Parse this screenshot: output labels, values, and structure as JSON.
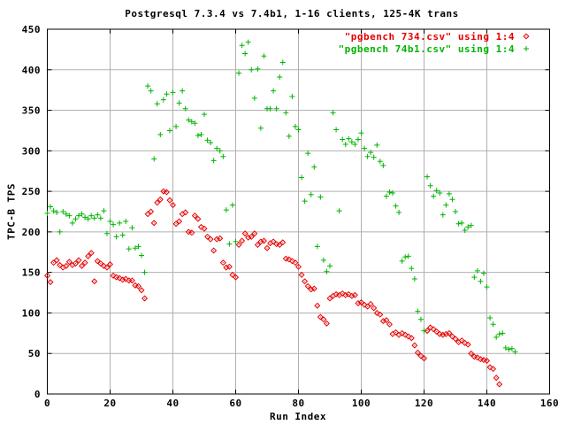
{
  "page_background": "#ffffff",
  "colors": {
    "grid": "#b0b0b0",
    "axis": "#000000",
    "series_734": "#e60000",
    "series_74b1": "#00b400"
  },
  "chart_data": {
    "type": "scatter",
    "title": "Postgresql 7.3.4 vs 7.4b1, 1-16 clients, 125-4K trans",
    "xlabel": "Run Index",
    "ylabel": "TPC-B TPS",
    "xlim": [
      0,
      160
    ],
    "ylim": [
      0,
      450
    ],
    "xticks": [
      0,
      20,
      40,
      60,
      80,
      100,
      120,
      140,
      160
    ],
    "yticks": [
      0,
      50,
      100,
      150,
      200,
      250,
      300,
      350,
      400,
      450
    ],
    "grid": true,
    "legend_position": "top-right-inside",
    "series": [
      {
        "name": "\"pgbench 734.csv\" using 1:4",
        "marker": "diamond",
        "color": "#e60000",
        "points": [
          [
            0,
            146
          ],
          [
            1,
            138
          ],
          [
            2,
            162
          ],
          [
            3,
            165
          ],
          [
            4,
            159
          ],
          [
            5,
            156
          ],
          [
            6,
            158
          ],
          [
            7,
            163
          ],
          [
            8,
            159
          ],
          [
            9,
            161
          ],
          [
            10,
            165
          ],
          [
            11,
            158
          ],
          [
            12,
            162
          ],
          [
            13,
            170
          ],
          [
            14,
            174
          ],
          [
            15,
            139
          ],
          [
            16,
            164
          ],
          [
            17,
            161
          ],
          [
            18,
            158
          ],
          [
            19,
            156
          ],
          [
            20,
            160
          ],
          [
            21,
            146
          ],
          [
            22,
            144
          ],
          [
            23,
            143
          ],
          [
            24,
            141
          ],
          [
            25,
            142
          ],
          [
            26,
            140
          ],
          [
            27,
            140
          ],
          [
            28,
            134
          ],
          [
            29,
            133
          ],
          [
            30,
            128
          ],
          [
            31,
            118
          ],
          [
            32,
            222
          ],
          [
            33,
            225
          ],
          [
            34,
            211
          ],
          [
            35,
            236
          ],
          [
            36,
            240
          ],
          [
            37,
            250
          ],
          [
            38,
            249
          ],
          [
            39,
            239
          ],
          [
            40,
            233
          ],
          [
            41,
            210
          ],
          [
            42,
            213
          ],
          [
            43,
            222
          ],
          [
            44,
            224
          ],
          [
            45,
            200
          ],
          [
            46,
            199
          ],
          [
            47,
            220
          ],
          [
            48,
            216
          ],
          [
            49,
            206
          ],
          [
            50,
            204
          ],
          [
            51,
            194
          ],
          [
            52,
            191
          ],
          [
            53,
            177
          ],
          [
            54,
            191
          ],
          [
            55,
            192
          ],
          [
            56,
            162
          ],
          [
            57,
            156
          ],
          [
            58,
            157
          ],
          [
            59,
            147
          ],
          [
            60,
            144
          ],
          [
            61,
            184
          ],
          [
            62,
            189
          ],
          [
            63,
            198
          ],
          [
            64,
            193
          ],
          [
            65,
            194
          ],
          [
            66,
            198
          ],
          [
            67,
            184
          ],
          [
            68,
            188
          ],
          [
            69,
            189
          ],
          [
            70,
            180
          ],
          [
            71,
            186
          ],
          [
            72,
            188
          ],
          [
            73,
            185
          ],
          [
            74,
            184
          ],
          [
            75,
            187
          ],
          [
            76,
            167
          ],
          [
            77,
            166
          ],
          [
            78,
            164
          ],
          [
            79,
            162
          ],
          [
            80,
            157
          ],
          [
            81,
            147
          ],
          [
            82,
            139
          ],
          [
            83,
            133
          ],
          [
            84,
            129
          ],
          [
            85,
            130
          ],
          [
            86,
            109
          ],
          [
            87,
            95
          ],
          [
            88,
            92
          ],
          [
            89,
            87
          ],
          [
            90,
            118
          ],
          [
            91,
            121
          ],
          [
            92,
            123
          ],
          [
            93,
            122
          ],
          [
            94,
            124
          ],
          [
            95,
            122
          ],
          [
            96,
            123
          ],
          [
            97,
            121
          ],
          [
            98,
            122
          ],
          [
            99,
            112
          ],
          [
            100,
            113
          ],
          [
            101,
            110
          ],
          [
            102,
            108
          ],
          [
            103,
            111
          ],
          [
            104,
            106
          ],
          [
            105,
            100
          ],
          [
            106,
            98
          ],
          [
            107,
            90
          ],
          [
            108,
            91
          ],
          [
            109,
            86
          ],
          [
            110,
            74
          ],
          [
            111,
            76
          ],
          [
            112,
            73
          ],
          [
            113,
            75
          ],
          [
            114,
            73
          ],
          [
            115,
            71
          ],
          [
            116,
            69
          ],
          [
            117,
            60
          ],
          [
            118,
            51
          ],
          [
            119,
            47
          ],
          [
            120,
            44
          ],
          [
            121,
            78
          ],
          [
            122,
            82
          ],
          [
            123,
            80
          ],
          [
            124,
            77
          ],
          [
            125,
            74
          ],
          [
            126,
            73
          ],
          [
            127,
            74
          ],
          [
            128,
            75
          ],
          [
            129,
            71
          ],
          [
            130,
            68
          ],
          [
            131,
            64
          ],
          [
            132,
            66
          ],
          [
            133,
            63
          ],
          [
            134,
            61
          ],
          [
            135,
            50
          ],
          [
            136,
            46
          ],
          [
            137,
            45
          ],
          [
            138,
            43
          ],
          [
            139,
            42
          ],
          [
            140,
            41
          ],
          [
            141,
            33
          ],
          [
            142,
            31
          ],
          [
            143,
            20
          ],
          [
            144,
            12
          ]
        ]
      },
      {
        "name": "\"pgbench 74b1.csv\" using 1:4",
        "marker": "plus",
        "color": "#00b400",
        "points": [
          [
            0,
            223
          ],
          [
            1,
            231
          ],
          [
            2,
            226
          ],
          [
            3,
            224
          ],
          [
            4,
            200
          ],
          [
            5,
            225
          ],
          [
            6,
            222
          ],
          [
            7,
            220
          ],
          [
            8,
            211
          ],
          [
            9,
            216
          ],
          [
            10,
            220
          ],
          [
            11,
            222
          ],
          [
            12,
            218
          ],
          [
            13,
            216
          ],
          [
            14,
            220
          ],
          [
            15,
            217
          ],
          [
            16,
            221
          ],
          [
            17,
            217
          ],
          [
            18,
            226
          ],
          [
            19,
            198
          ],
          [
            20,
            213
          ],
          [
            21,
            209
          ],
          [
            22,
            194
          ],
          [
            23,
            211
          ],
          [
            24,
            196
          ],
          [
            25,
            213
          ],
          [
            26,
            179
          ],
          [
            27,
            205
          ],
          [
            28,
            180
          ],
          [
            29,
            182
          ],
          [
            30,
            171
          ],
          [
            31,
            150
          ],
          [
            32,
            380
          ],
          [
            33,
            374
          ],
          [
            34,
            290
          ],
          [
            35,
            358
          ],
          [
            36,
            320
          ],
          [
            37,
            363
          ],
          [
            38,
            370
          ],
          [
            39,
            325
          ],
          [
            40,
            372
          ],
          [
            41,
            330
          ],
          [
            42,
            359
          ],
          [
            43,
            374
          ],
          [
            44,
            352
          ],
          [
            45,
            338
          ],
          [
            46,
            336
          ],
          [
            47,
            334
          ],
          [
            48,
            319
          ],
          [
            49,
            320
          ],
          [
            50,
            345
          ],
          [
            51,
            313
          ],
          [
            52,
            310
          ],
          [
            53,
            288
          ],
          [
            54,
            303
          ],
          [
            55,
            300
          ],
          [
            56,
            293
          ],
          [
            57,
            227
          ],
          [
            58,
            185
          ],
          [
            59,
            233
          ],
          [
            60,
            188
          ],
          [
            61,
            396
          ],
          [
            62,
            430
          ],
          [
            63,
            420
          ],
          [
            64,
            434
          ],
          [
            65,
            400
          ],
          [
            66,
            365
          ],
          [
            67,
            401
          ],
          [
            68,
            328
          ],
          [
            69,
            417
          ],
          [
            70,
            352
          ],
          [
            71,
            352
          ],
          [
            72,
            374
          ],
          [
            73,
            352
          ],
          [
            74,
            391
          ],
          [
            75,
            409
          ],
          [
            76,
            347
          ],
          [
            77,
            318
          ],
          [
            78,
            367
          ],
          [
            79,
            330
          ],
          [
            80,
            326
          ],
          [
            81,
            267
          ],
          [
            82,
            238
          ],
          [
            83,
            297
          ],
          [
            84,
            246
          ],
          [
            85,
            280
          ],
          [
            86,
            182
          ],
          [
            87,
            243
          ],
          [
            88,
            165
          ],
          [
            89,
            151
          ],
          [
            90,
            158
          ],
          [
            91,
            347
          ],
          [
            92,
            326
          ],
          [
            93,
            226
          ],
          [
            94,
            314
          ],
          [
            95,
            308
          ],
          [
            96,
            315
          ],
          [
            97,
            311
          ],
          [
            98,
            308
          ],
          [
            99,
            314
          ],
          [
            100,
            322
          ],
          [
            101,
            303
          ],
          [
            102,
            293
          ],
          [
            103,
            298
          ],
          [
            104,
            292
          ],
          [
            105,
            307
          ],
          [
            106,
            287
          ],
          [
            107,
            282
          ],
          [
            108,
            244
          ],
          [
            109,
            249
          ],
          [
            110,
            248
          ],
          [
            111,
            232
          ],
          [
            112,
            224
          ],
          [
            113,
            164
          ],
          [
            114,
            169
          ],
          [
            115,
            170
          ],
          [
            116,
            155
          ],
          [
            117,
            142
          ],
          [
            118,
            102
          ],
          [
            119,
            92
          ],
          [
            120,
            78
          ],
          [
            121,
            268
          ],
          [
            122,
            257
          ],
          [
            123,
            244
          ],
          [
            124,
            251
          ],
          [
            125,
            248
          ],
          [
            126,
            221
          ],
          [
            127,
            233
          ],
          [
            128,
            247
          ],
          [
            129,
            240
          ],
          [
            130,
            225
          ],
          [
            131,
            210
          ],
          [
            132,
            211
          ],
          [
            133,
            202
          ],
          [
            134,
            206
          ],
          [
            135,
            208
          ],
          [
            136,
            144
          ],
          [
            137,
            152
          ],
          [
            138,
            139
          ],
          [
            139,
            149
          ],
          [
            140,
            132
          ],
          [
            141,
            94
          ],
          [
            142,
            86
          ],
          [
            143,
            70
          ],
          [
            144,
            74
          ],
          [
            145,
            75
          ],
          [
            146,
            57
          ],
          [
            147,
            55
          ],
          [
            148,
            56
          ],
          [
            149,
            52
          ]
        ]
      }
    ]
  }
}
